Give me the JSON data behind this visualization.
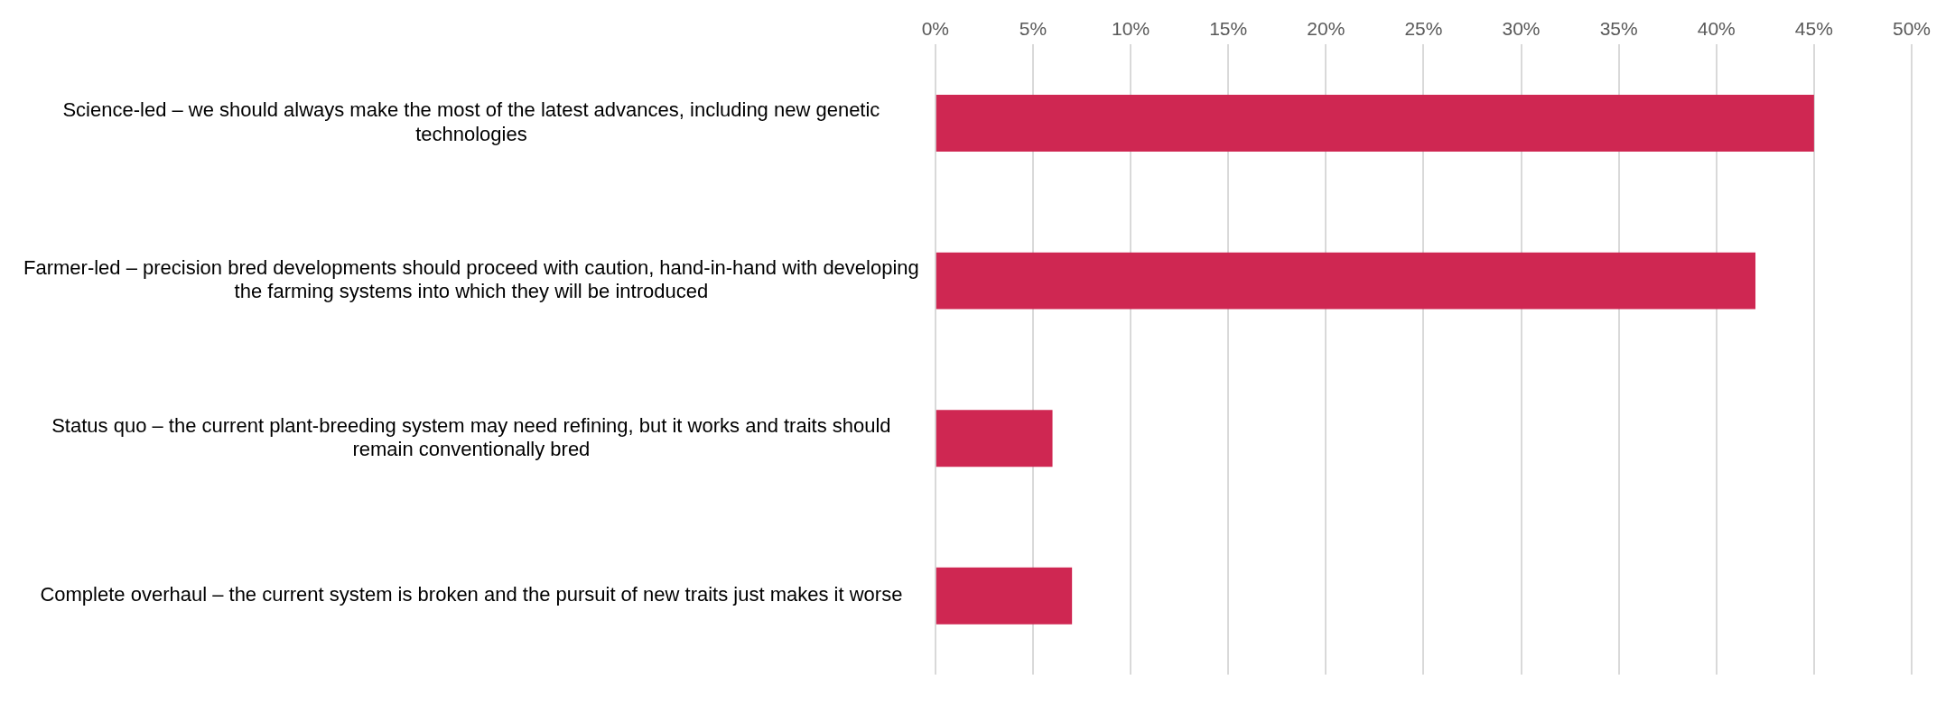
{
  "chart_data": {
    "type": "bar",
    "orientation": "horizontal",
    "categories": [
      "Science-led – we should always make the most of the latest advances, including new genetic technologies",
      "Farmer-led – precision bred developments should proceed with caution, hand-in-hand with developing the farming systems into which they will be introduced",
      "Status quo – the current plant-breeding system may need refining, but it works and traits should remain conventionally bred",
      "Complete overhaul – the current system is broken and the pursuit of new traits just makes it worse"
    ],
    "values": [
      45,
      42,
      6,
      7
    ],
    "color": "#cf2752",
    "xlim": [
      0,
      50
    ],
    "xticks": [
      {
        "value": 0,
        "label": "0%"
      },
      {
        "value": 5,
        "label": "5%"
      },
      {
        "value": 10,
        "label": "10%"
      },
      {
        "value": 15,
        "label": "15%"
      },
      {
        "value": 20,
        "label": "20%"
      },
      {
        "value": 25,
        "label": "25%"
      },
      {
        "value": 30,
        "label": "30%"
      },
      {
        "value": 35,
        "label": "35%"
      },
      {
        "value": 40,
        "label": "40%"
      },
      {
        "value": 45,
        "label": "45%"
      },
      {
        "value": 50,
        "label": "50%"
      }
    ],
    "grid": "x",
    "legend": false
  }
}
